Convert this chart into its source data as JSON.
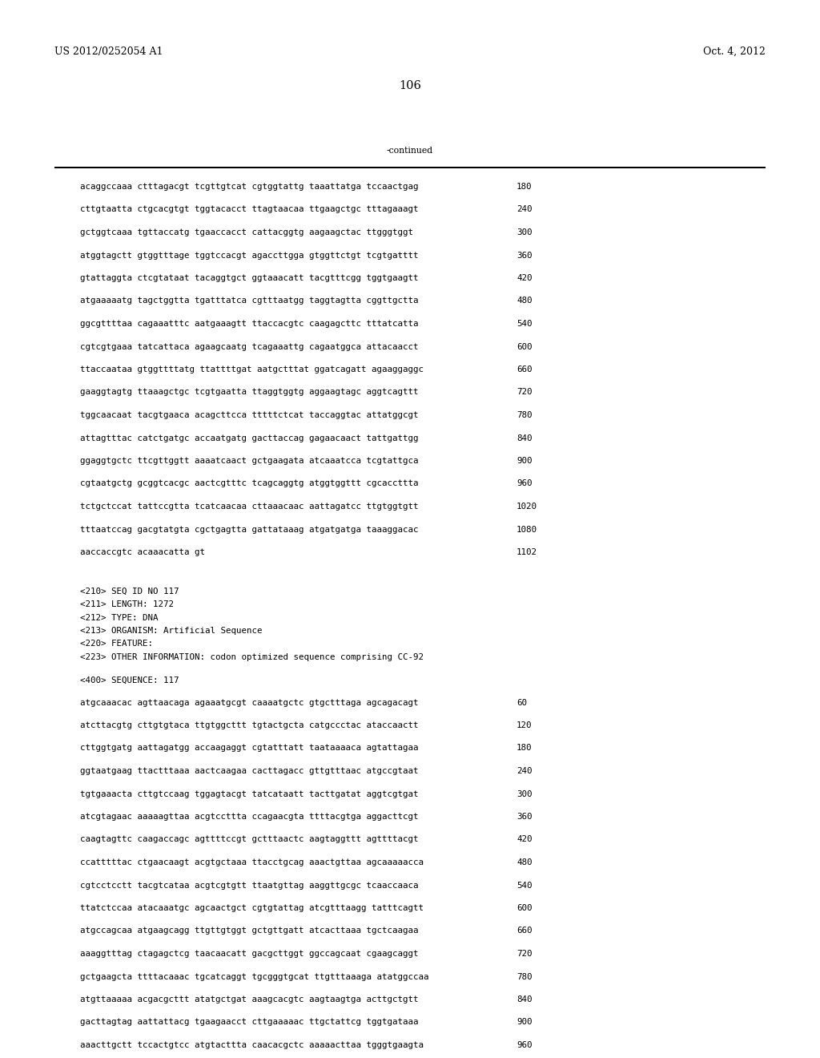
{
  "header_left": "US 2012/0252054 A1",
  "header_right": "Oct. 4, 2012",
  "page_number": "106",
  "continued_label": "-continued",
  "background_color": "#ffffff",
  "text_color": "#000000",
  "font_size_header": 9.0,
  "font_size_body": 7.8,
  "font_size_page": 10.5,
  "sequence_lines_top": [
    [
      "acaggccaaa ctttagacgt tcgttgtcat cgtggtattg taaattatga tccaactgag",
      "180"
    ],
    [
      "cttgtaatta ctgcacgtgt tggtacacct ttagtaacaa ttgaagctgc tttagaaagt",
      "240"
    ],
    [
      "gctggtcaaa tgttaccatg tgaaccacct cattacggtg aagaagctac ttgggtggt",
      "300"
    ],
    [
      "atggtagctt gtggtttage tggtccacgt agaccttgga gtggttctgt tcgtgatttt",
      "360"
    ],
    [
      "gtattaggta ctcgtataat tacaggtgct ggtaaacatt tacgtttcgg tggtgaagtt",
      "420"
    ],
    [
      "atgaaaaatg tagctggtta tgatttatca cgtttaatgg taggtagtta cggttgctta",
      "480"
    ],
    [
      "ggcgttttaa cagaaatttc aatgaaagtt ttaccacgtc caagagcttc tttatcatta",
      "540"
    ],
    [
      "cgtcgtgaaa tatcattaca agaagcaatg tcagaaattg cagaatggca attacaacct",
      "600"
    ],
    [
      "ttaccaataa gtggttttatg ttattttgat aatgctttat ggatcagatt agaaggaggc",
      "660"
    ],
    [
      "gaaggtagtg ttaaagctgc tcgtgaatta ttaggtggtg aggaagtagc aggtcagttt",
      "720"
    ],
    [
      "tggcaacaat tacgtgaaca acagcttcca tttttctcat taccaggtac attatggcgt",
      "780"
    ],
    [
      "attagtttac catctgatgc accaatgatg gacttaccag gagaacaact tattgattgg",
      "840"
    ],
    [
      "ggaggtgctc ttcgttggtt aaaatcaact gctgaagata atcaaatcca tcgtattgca",
      "900"
    ],
    [
      "cgtaatgctg gcggtcacgc aactcgtttc tcagcaggtg atggtggttt cgcaccttta",
      "960"
    ],
    [
      "tctgctccat tattccgtta tcatcaacaa cttaaacaac aattagatcc ttgtggtgtt",
      "1020"
    ],
    [
      "tttaatccag gacgtatgta cgctgagtta gattataaag atgatgatga taaaggacac",
      "1080"
    ],
    [
      "aaccaccgtc acaaacatta gt",
      "1102"
    ]
  ],
  "metadata_lines": [
    "<210> SEQ ID NO 117",
    "<211> LENGTH: 1272",
    "<212> TYPE: DNA",
    "<213> ORGANISM: Artificial Sequence",
    "<220> FEATURE:",
    "<223> OTHER INFORMATION: codon optimized sequence comprising CC-92"
  ],
  "sequence_label": "<400> SEQUENCE: 117",
  "sequence_lines_bottom": [
    [
      "atgcaaacac agttaacaga agaaatgcgt caaaatgctc gtgctttaga agcagacagt",
      "60"
    ],
    [
      "atcttacgtg cttgtgtaca ttgtggcttt tgtactgcta catgccctac ataccaactt",
      "120"
    ],
    [
      "cttggtgatg aattagatgg accaagaggt cgtatttatt taataaaaca agtattagaa",
      "180"
    ],
    [
      "ggtaatgaag ttactttaaa aactcaagaa cacttagacc gttgtttaac atgccgtaat",
      "240"
    ],
    [
      "tgtgaaacta cttgtccaag tggagtacgt tatcataatt tacttgatat aggtcgtgat",
      "300"
    ],
    [
      "atcgtagaac aaaaagttaa acgtccttta ccagaacgta ttttacgtga aggacttcgt",
      "360"
    ],
    [
      "caagtagttc caagaccagc agttttccgt gctttaactc aagtaggttt agttttacgt",
      "420"
    ],
    [
      "ccatttttac ctgaacaagt acgtgctaaa ttacctgcag aaactgttaa agcaaaaacca",
      "480"
    ],
    [
      "cgtcctcctt tacgtcataa acgtcgtgtt ttaatgttag aaggttgcgc tcaaccaaca",
      "540"
    ],
    [
      "ttatctccaa atacaaatgc agcaactgct cgtgtattag atcgtttaagg tatttcagtt",
      "600"
    ],
    [
      "atgccagcaa atgaagcagg ttgttgtggt gctgttgatt atcacttaaa tgctcaagaa",
      "660"
    ],
    [
      "aaaggtttag ctagagctcg taacaacatt gacgcttggt ggccagcaat cgaagcaggt",
      "720"
    ],
    [
      "gctgaagcta ttttacaaac tgcatcaggt tgcgggtgcat ttgtttaaaga atatggccaa",
      "780"
    ],
    [
      "atgttaaaaa acgacgcttt atatgctgat aaagcacgtc aagtaagtga acttgctgtt",
      "840"
    ],
    [
      "gacttagtag aattattacg tgaagaacct cttgaaaaac ttgctattcg tggtgataaa",
      "900"
    ],
    [
      "aaacttgctt tccactgtcc atgtacttta caacacgctc aaaaacttaa tgggtgaagta",
      "960"
    ]
  ]
}
